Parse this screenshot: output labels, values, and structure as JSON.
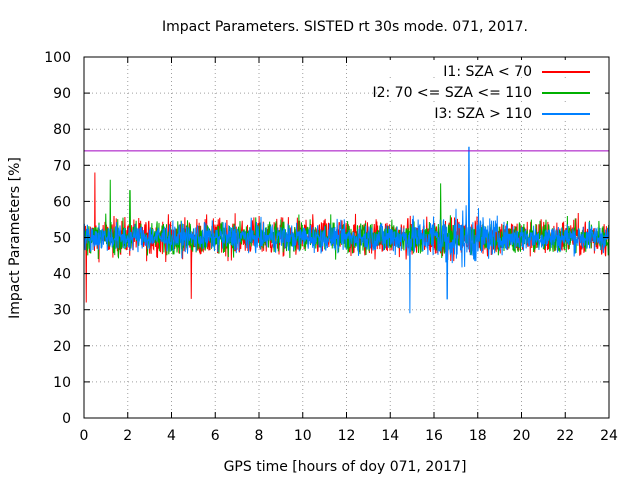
{
  "chart_data": {
    "type": "line",
    "title": "Impact Parameters. SISTED rt 30s mode. 071, 2017.",
    "xlabel": "GPS time [hours of doy 071, 2017]",
    "ylabel": "Impact Parameters [%]",
    "xlim": [
      0,
      24
    ],
    "ylim": [
      0,
      100
    ],
    "x_ticks": [
      0,
      2,
      4,
      6,
      8,
      10,
      12,
      14,
      16,
      18,
      20,
      22,
      24
    ],
    "y_ticks": [
      0,
      10,
      20,
      30,
      40,
      50,
      60,
      70,
      80,
      90,
      100
    ],
    "grid": true,
    "legend_position": "top-right",
    "series": [
      {
        "name": "I1: SZA < 70",
        "color": "#ff0000",
        "mean": 50,
        "typical_range": [
          43,
          58
        ],
        "extremes": [
          {
            "x": 0.1,
            "y": 32
          },
          {
            "x": 0.5,
            "y": 68
          },
          {
            "x": 4.9,
            "y": 33
          }
        ]
      },
      {
        "name": "I2: 70 <= SZA <= 110",
        "color": "#00b000",
        "mean": 50,
        "typical_range": [
          44,
          57
        ],
        "extremes": [
          {
            "x": 1.2,
            "y": 66
          },
          {
            "x": 2.1,
            "y": 63
          },
          {
            "x": 16.3,
            "y": 65
          }
        ]
      },
      {
        "name": "I3: SZA > 110",
        "color": "#0080ff",
        "mean": 50,
        "typical_range": [
          45,
          56
        ],
        "extremes": [
          {
            "x": 17.6,
            "y": 75
          },
          {
            "x": 14.9,
            "y": 29
          },
          {
            "x": 16.6,
            "y": 33
          }
        ]
      }
    ],
    "reference_line": {
      "y": 74,
      "color": "#a000c0"
    }
  }
}
